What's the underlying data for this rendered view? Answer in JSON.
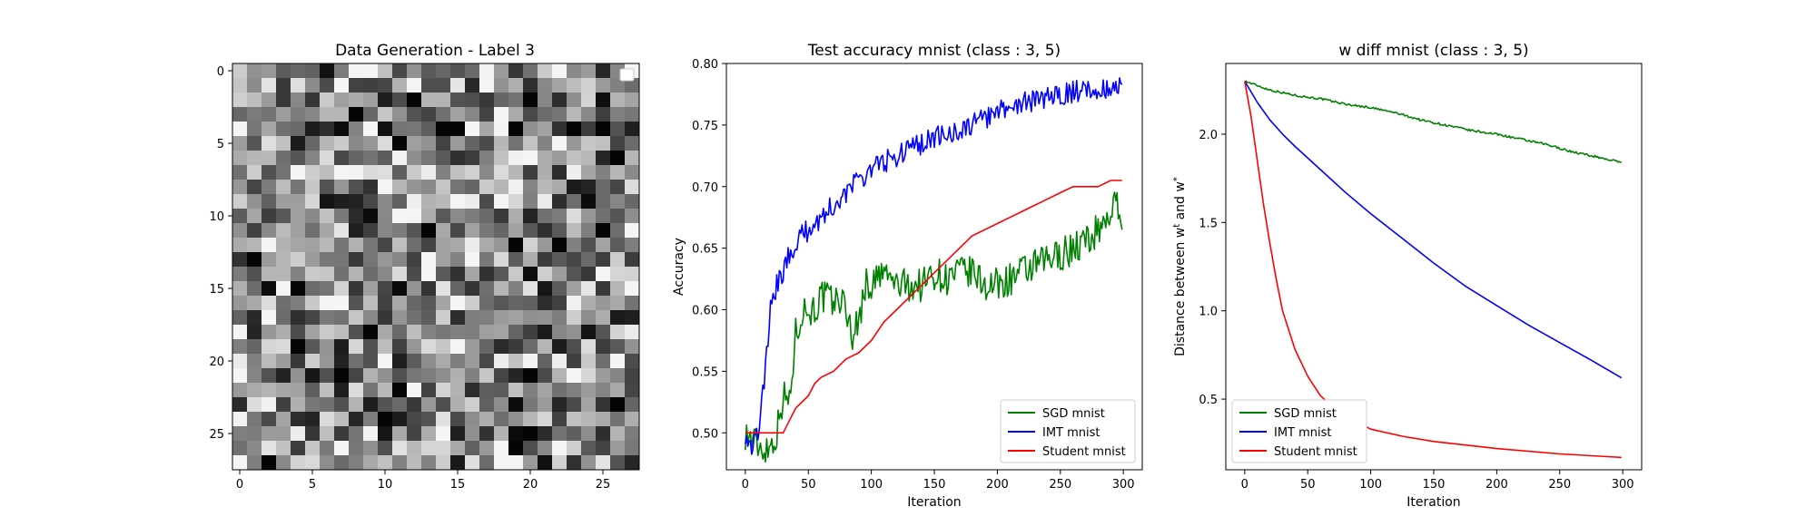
{
  "chart_data": [
    {
      "type": "heatmap",
      "title": "Data Generation - Label 3",
      "xlabel": "",
      "ylabel": "",
      "colormap": "gray",
      "rows": 28,
      "cols": 28,
      "xlim": [
        -0.5,
        27.5
      ],
      "ylim": [
        27.5,
        -0.5
      ],
      "xticks": [
        0,
        5,
        10,
        15,
        20,
        25
      ],
      "yticks": [
        0,
        5,
        10,
        15,
        20,
        25
      ],
      "legend_position": "upper right",
      "legend_entries": [],
      "description": "random noise image, pixel intensities roughly 0.05-0.95 grayscale"
    },
    {
      "type": "line",
      "title": "Test accuracy mnist (class : 3, 5)",
      "xlabel": "Iteration",
      "ylabel": "Accuracy",
      "xlim": [
        -15,
        315
      ],
      "ylim": [
        0.47,
        0.8
      ],
      "xticks": [
        0,
        50,
        100,
        150,
        200,
        250,
        300
      ],
      "yticks": [
        "0.50",
        "0.55",
        "0.60",
        "0.65",
        "0.70",
        "0.75",
        "0.80"
      ],
      "legend_position": "lower right",
      "series": [
        {
          "name": "SGD mnist",
          "color": "#008000",
          "x": [
            0,
            10,
            15,
            20,
            25,
            28,
            30,
            35,
            40,
            45,
            50,
            55,
            60,
            65,
            70,
            75,
            80,
            85,
            90,
            95,
            100,
            110,
            120,
            130,
            140,
            150,
            160,
            170,
            180,
            190,
            200,
            210,
            220,
            230,
            240,
            250,
            260,
            270,
            280,
            290,
            295,
            299
          ],
          "y": [
            0.5,
            0.49,
            0.487,
            0.49,
            0.5,
            0.52,
            0.53,
            0.525,
            0.58,
            0.6,
            0.6,
            0.6,
            0.61,
            0.61,
            0.605,
            0.61,
            0.6,
            0.58,
            0.59,
            0.62,
            0.62,
            0.63,
            0.62,
            0.62,
            0.62,
            0.63,
            0.625,
            0.63,
            0.63,
            0.62,
            0.62,
            0.625,
            0.63,
            0.635,
            0.64,
            0.645,
            0.65,
            0.655,
            0.665,
            0.68,
            0.685,
            0.665
          ]
        },
        {
          "name": "IMT mnist",
          "color": "#0000ff",
          "x": [
            0,
            5,
            10,
            15,
            20,
            25,
            30,
            35,
            40,
            45,
            50,
            55,
            60,
            70,
            80,
            90,
            100,
            110,
            120,
            130,
            140,
            150,
            160,
            170,
            180,
            190,
            200,
            210,
            220,
            230,
            240,
            250,
            260,
            270,
            280,
            290,
            299
          ],
          "y": [
            0.5,
            0.49,
            0.5,
            0.54,
            0.6,
            0.62,
            0.63,
            0.645,
            0.655,
            0.66,
            0.665,
            0.67,
            0.675,
            0.685,
            0.695,
            0.705,
            0.715,
            0.72,
            0.725,
            0.73,
            0.735,
            0.74,
            0.742,
            0.745,
            0.75,
            0.755,
            0.76,
            0.765,
            0.768,
            0.77,
            0.772,
            0.775,
            0.777,
            0.778,
            0.78,
            0.781,
            0.783
          ]
        },
        {
          "name": "Student mnist",
          "color": "#ff0000",
          "x": [
            0,
            10,
            20,
            30,
            35,
            40,
            50,
            55,
            60,
            70,
            80,
            90,
            100,
            110,
            120,
            130,
            140,
            150,
            160,
            170,
            180,
            190,
            200,
            210,
            220,
            230,
            240,
            250,
            260,
            270,
            280,
            290,
            299
          ],
          "y": [
            0.5,
            0.5,
            0.5,
            0.5,
            0.51,
            0.52,
            0.53,
            0.54,
            0.545,
            0.55,
            0.56,
            0.565,
            0.575,
            0.59,
            0.6,
            0.61,
            0.62,
            0.63,
            0.64,
            0.65,
            0.66,
            0.665,
            0.67,
            0.675,
            0.68,
            0.685,
            0.69,
            0.695,
            0.7,
            0.7,
            0.7,
            0.705,
            0.705
          ]
        }
      ]
    },
    {
      "type": "line",
      "title": "w diff mnist (class : 3, 5)",
      "xlabel": "Iteration",
      "ylabel": "Distance between w^t and w^*",
      "xlim": [
        -15,
        315
      ],
      "ylim": [
        0.1,
        2.4
      ],
      "xticks": [
        0,
        50,
        100,
        150,
        200,
        250,
        300
      ],
      "yticks": [
        "0.5",
        "1.0",
        "1.5",
        "2.0"
      ],
      "legend_position": "lower left",
      "series": [
        {
          "name": "SGD mnist",
          "color": "#008000",
          "x": [
            0,
            20,
            40,
            60,
            80,
            100,
            120,
            140,
            160,
            180,
            200,
            220,
            240,
            260,
            280,
            299
          ],
          "y": [
            2.3,
            2.25,
            2.22,
            2.2,
            2.17,
            2.15,
            2.12,
            2.08,
            2.05,
            2.02,
            2.0,
            1.97,
            1.94,
            1.9,
            1.87,
            1.84
          ]
        },
        {
          "name": "IMT mnist",
          "color": "#0000ff",
          "x": [
            0,
            10,
            20,
            30,
            40,
            60,
            80,
            100,
            125,
            150,
            175,
            200,
            225,
            250,
            275,
            299
          ],
          "y": [
            2.3,
            2.18,
            2.08,
            2.0,
            1.93,
            1.8,
            1.67,
            1.55,
            1.41,
            1.27,
            1.14,
            1.03,
            0.92,
            0.82,
            0.72,
            0.62
          ]
        },
        {
          "name": "Student mnist",
          "color": "#ff0000",
          "x": [
            0,
            5,
            10,
            15,
            20,
            25,
            30,
            40,
            50,
            60,
            75,
            100,
            125,
            150,
            200,
            250,
            299
          ],
          "y": [
            2.3,
            2.1,
            1.85,
            1.6,
            1.38,
            1.18,
            1.0,
            0.78,
            0.63,
            0.52,
            0.42,
            0.33,
            0.29,
            0.26,
            0.22,
            0.19,
            0.17
          ]
        }
      ]
    }
  ]
}
